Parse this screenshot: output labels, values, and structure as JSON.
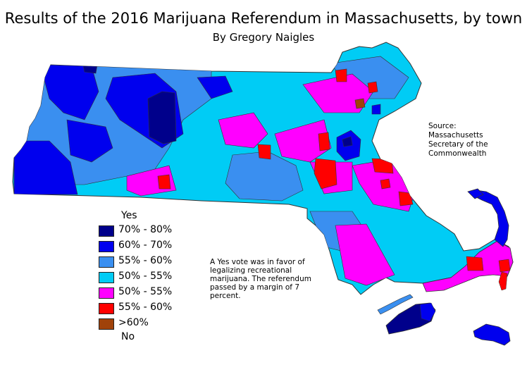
{
  "title": "Results of the 2016 Marijuana Referendum in Massachusetts, by town",
  "subtitle": "By Gregory Naigles",
  "legend": {
    "yes_header": "Yes",
    "no_header": "No",
    "items": [
      {
        "label": "70% - 80%",
        "color": "#00008b",
        "side": "yes"
      },
      {
        "label": "60% - 70%",
        "color": "#0000ee",
        "side": "yes"
      },
      {
        "label": "55% - 60%",
        "color": "#3a8ff0",
        "side": "yes"
      },
      {
        "label": "50% - 55%",
        "color": "#00ccf5",
        "side": "no"
      },
      {
        "label": "50% - 55%",
        "color": "#ff00ff",
        "side": "no"
      },
      {
        "label": "55% - 60%",
        "color": "#ff0000",
        "side": "no"
      },
      {
        "label": ">60%",
        "color": "#a0420a",
        "side": "no"
      }
    ]
  },
  "note": "A Yes vote was in favor of legalizing recreational marijuana. The referendum passed by a margin of 7 percent.",
  "source": "Source: Massachusetts Secretary of the Commonwealth"
}
